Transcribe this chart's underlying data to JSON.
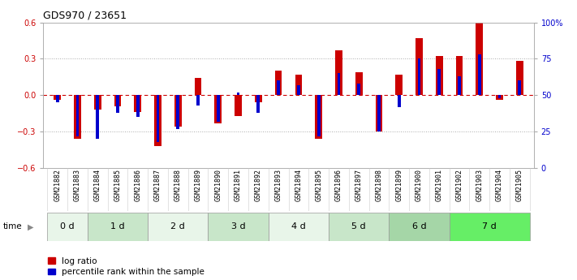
{
  "title": "GDS970 / 23651",
  "samples": [
    "GSM21882",
    "GSM21883",
    "GSM21884",
    "GSM21885",
    "GSM21886",
    "GSM21887",
    "GSM21888",
    "GSM21889",
    "GSM21890",
    "GSM21891",
    "GSM21892",
    "GSM21893",
    "GSM21894",
    "GSM21895",
    "GSM21896",
    "GSM21897",
    "GSM21898",
    "GSM21899",
    "GSM21900",
    "GSM21901",
    "GSM21902",
    "GSM21903",
    "GSM21904",
    "GSM21905"
  ],
  "log_ratio": [
    -0.04,
    -0.36,
    -0.12,
    -0.09,
    -0.14,
    -0.42,
    -0.26,
    0.14,
    -0.23,
    -0.17,
    -0.06,
    0.2,
    0.17,
    -0.36,
    0.37,
    0.19,
    -0.3,
    0.17,
    0.47,
    0.32,
    0.32,
    0.6,
    -0.04,
    0.28
  ],
  "percentile": [
    45,
    22,
    20,
    38,
    35,
    18,
    27,
    43,
    32,
    52,
    38,
    60,
    57,
    22,
    65,
    58,
    25,
    42,
    75,
    68,
    63,
    78,
    48,
    60
  ],
  "groups": [
    {
      "label": "0 d",
      "start": 0,
      "end": 2,
      "color": "#e8f5e9"
    },
    {
      "label": "1 d",
      "start": 2,
      "end": 5,
      "color": "#c8e6c9"
    },
    {
      "label": "2 d",
      "start": 5,
      "end": 8,
      "color": "#e8f5e9"
    },
    {
      "label": "3 d",
      "start": 8,
      "end": 11,
      "color": "#c8e6c9"
    },
    {
      "label": "4 d",
      "start": 11,
      "end": 14,
      "color": "#e8f5e9"
    },
    {
      "label": "5 d",
      "start": 14,
      "end": 17,
      "color": "#c8e6c9"
    },
    {
      "label": "6 d",
      "start": 17,
      "end": 20,
      "color": "#a5d6a7"
    },
    {
      "label": "7 d",
      "start": 20,
      "end": 24,
      "color": "#66ee66"
    }
  ],
  "ylim": [
    -0.6,
    0.6
  ],
  "yticks_left": [
    -0.6,
    -0.3,
    0.0,
    0.3,
    0.6
  ],
  "yticks_right": [
    0,
    25,
    50,
    75,
    100
  ],
  "ytick_right_labels": [
    "0",
    "25",
    "50",
    "75",
    "100%"
  ],
  "bar_color_red": "#cc0000",
  "bar_color_blue": "#0000cc",
  "bar_width": 0.35,
  "percentile_bar_width": 0.15,
  "dotted_line_color": "#aaaaaa",
  "zero_line_color": "#cc0000",
  "background_color": "#ffffff",
  "title_fontsize": 9,
  "tick_fontsize": 7,
  "legend_fontsize": 7.5
}
